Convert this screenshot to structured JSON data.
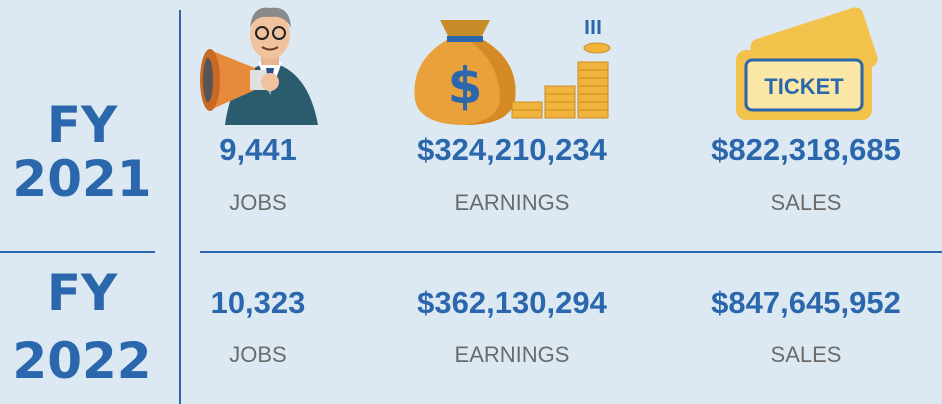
{
  "rows": [
    {
      "fy": "FY",
      "year": "2021",
      "stats": [
        {
          "value": "9,441",
          "label": "JOBS"
        },
        {
          "value": "$324,210,234",
          "label": "EARNINGS"
        },
        {
          "value": "$822,318,685",
          "label": "SALES"
        }
      ]
    },
    {
      "fy": "FY",
      "year": "2022",
      "stats": [
        {
          "value": "10,323",
          "label": "JOBS"
        },
        {
          "value": "$362,130,294",
          "label": "EARNINGS"
        },
        {
          "value": "$847,645,952",
          "label": "SALES"
        }
      ]
    }
  ],
  "ticket": "TICKET"
}
